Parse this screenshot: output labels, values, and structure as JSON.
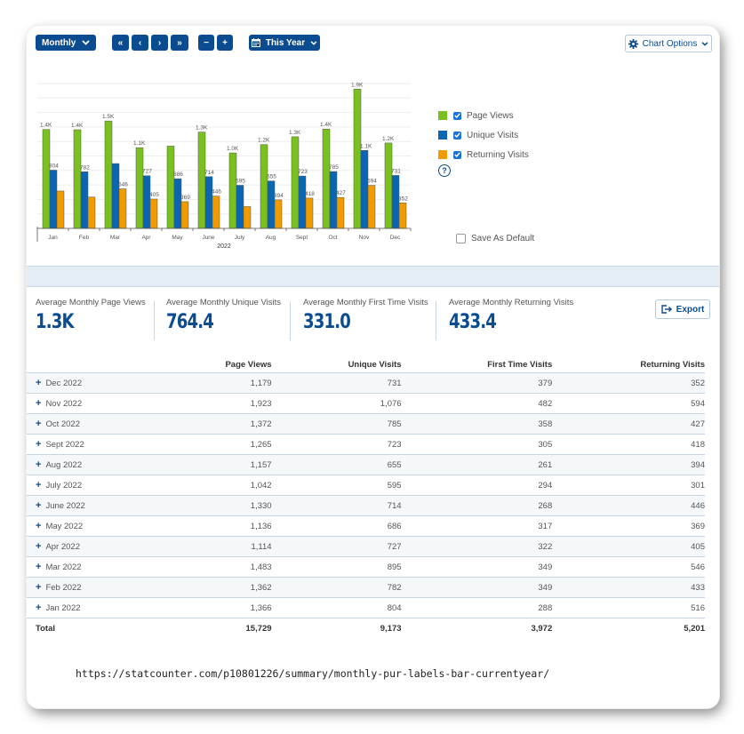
{
  "toolbar": {
    "period_label": "Monthly",
    "nav_first": "«",
    "nav_prev": "‹",
    "nav_next": "›",
    "nav_last": "»",
    "zoom_out": "−",
    "zoom_in": "+",
    "range_label": "This Year",
    "chart_options_label": "Chart Options",
    "icons": {
      "period": "chevron-down-icon",
      "range": "calendar-icon",
      "chart_options": "gear-icon"
    }
  },
  "colors": {
    "page_views": "#7ac11f",
    "unique_visits": "#0a66b2",
    "returning_visits": "#f09b00",
    "brand": "#0b4b8f"
  },
  "legend": {
    "items": [
      {
        "label": "Page Views",
        "checked": true
      },
      {
        "label": "Unique Visits",
        "checked": true
      },
      {
        "label": "Returning Visits",
        "checked": true
      }
    ],
    "help": "?",
    "save_default_label": "Save As Default",
    "save_default_checked": false
  },
  "chart_data": {
    "type": "bar",
    "title": "",
    "xlabel": "2022",
    "ylabel": "",
    "categories": [
      "Jan",
      "Feb",
      "Mar",
      "Apr",
      "May",
      "June",
      "July",
      "Aug",
      "Sept",
      "Oct",
      "Nov",
      "Dec"
    ],
    "series": [
      {
        "name": "Page Views",
        "values": [
          1366,
          1362,
          1483,
          1114,
          1136,
          1330,
          1042,
          1157,
          1265,
          1372,
          1923,
          1179
        ],
        "labels": [
          "1.4K",
          "1.4K",
          "1.5K",
          "1.1K",
          "",
          "1.3K",
          "1.0K",
          "1.2K",
          "1.3K",
          "1.4K",
          "1.9K",
          "1.2K"
        ]
      },
      {
        "name": "Unique Visits",
        "values": [
          804,
          782,
          895,
          727,
          686,
          714,
          595,
          655,
          723,
          785,
          1076,
          731
        ],
        "labels": [
          "804",
          "782",
          "",
          "727",
          "686",
          "714",
          "595",
          "655",
          "723",
          "785",
          "1.1K",
          "731"
        ]
      },
      {
        "name": "Returning Visits",
        "values": [
          516,
          433,
          546,
          405,
          369,
          446,
          301,
          394,
          418,
          427,
          594,
          352
        ],
        "labels": [
          "",
          "",
          "546",
          "405",
          "369",
          "446",
          "",
          "394",
          "418",
          "427",
          "594",
          "352"
        ]
      }
    ],
    "ylim": [
      0,
      2000
    ],
    "grid": true,
    "legend_position": "right"
  },
  "stats": [
    {
      "label": "Average Monthly Page Views",
      "value": "1.3K"
    },
    {
      "label": "Average Monthly Unique Visits",
      "value": "764.4"
    },
    {
      "label": "Average Monthly First Time Visits",
      "value": "331.0"
    },
    {
      "label": "Average Monthly Returning Visits",
      "value": "433.4"
    }
  ],
  "export_label": "Export",
  "table": {
    "headers": [
      "",
      "Page Views",
      "Unique Visits",
      "First Time Visits",
      "Returning Visits"
    ],
    "rows": [
      [
        "Dec 2022",
        "1,179",
        "731",
        "379",
        "352"
      ],
      [
        "Nov 2022",
        "1,923",
        "1,076",
        "482",
        "594"
      ],
      [
        "Oct 2022",
        "1,372",
        "785",
        "358",
        "427"
      ],
      [
        "Sept 2022",
        "1,265",
        "723",
        "305",
        "418"
      ],
      [
        "Aug 2022",
        "1,157",
        "655",
        "261",
        "394"
      ],
      [
        "July 2022",
        "1,042",
        "595",
        "294",
        "301"
      ],
      [
        "June 2022",
        "1,330",
        "714",
        "268",
        "446"
      ],
      [
        "May 2022",
        "1,136",
        "686",
        "317",
        "369"
      ],
      [
        "Apr 2022",
        "1,114",
        "727",
        "322",
        "405"
      ],
      [
        "Mar 2022",
        "1,483",
        "895",
        "349",
        "546"
      ],
      [
        "Feb 2022",
        "1,362",
        "782",
        "349",
        "433"
      ],
      [
        "Jan 2022",
        "1,366",
        "804",
        "288",
        "516"
      ]
    ],
    "total": [
      "Total",
      "15,729",
      "9,173",
      "3,972",
      "5,201"
    ]
  },
  "url": "https://statcounter.com/p10801226/summary/monthly-pur-labels-bar-currentyear/"
}
